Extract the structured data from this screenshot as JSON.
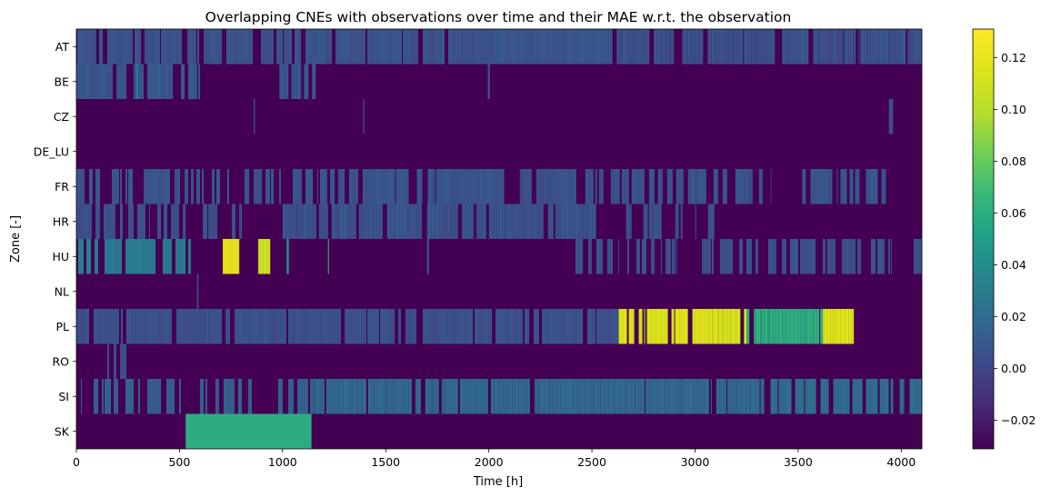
{
  "chart_data": {
    "type": "heatmap",
    "title": "Overlapping CNEs with observations over time and their MAE w.r.t. the observation",
    "xlabel": "Time [h]",
    "ylabel": "Zone [-]",
    "xlim": [
      0,
      4100
    ],
    "xticks": [
      0,
      500,
      1000,
      1500,
      2000,
      2500,
      3000,
      3500,
      4000
    ],
    "zones": [
      "AT",
      "BE",
      "CZ",
      "DE_LU",
      "FR",
      "HR",
      "HU",
      "NL",
      "PL",
      "RO",
      "SI",
      "SK"
    ],
    "colorbar": {
      "colormap": "viridis",
      "vmin": -0.031,
      "vmax": 0.131,
      "ticks": [
        -0.02,
        0.0,
        0.02,
        0.04,
        0.06,
        0.08,
        0.1,
        0.12
      ],
      "tick_labels": [
        "−0.02",
        "0.00",
        "0.02",
        "0.04",
        "0.06",
        "0.08",
        "0.10",
        "0.12"
      ]
    },
    "background_value": -0.031,
    "rows": [
      {
        "zone": "AT",
        "segments": [
          {
            "start": 0,
            "end": 2600,
            "value": 0.006,
            "density": 0.9
          },
          {
            "start": 2600,
            "end": 2620,
            "value": -0.031,
            "density": 1.0
          },
          {
            "start": 2620,
            "end": 4100,
            "value": 0.006,
            "density": 0.9
          }
        ]
      },
      {
        "zone": "BE",
        "segments": [
          {
            "start": 0,
            "end": 600,
            "value": 0.008,
            "density": 0.7
          },
          {
            "start": 290,
            "end": 300,
            "value": 0.03,
            "density": 1.0
          },
          {
            "start": 980,
            "end": 1160,
            "value": 0.008,
            "density": 0.5
          },
          {
            "start": 1995,
            "end": 2005,
            "value": 0.008,
            "density": 1.0
          }
        ]
      },
      {
        "zone": "CZ",
        "segments": [
          {
            "start": 860,
            "end": 866,
            "value": 0.005,
            "density": 1.0
          },
          {
            "start": 1390,
            "end": 1396,
            "value": 0.005,
            "density": 1.0
          },
          {
            "start": 3940,
            "end": 3960,
            "value": 0.005,
            "density": 1.0
          }
        ]
      },
      {
        "zone": "DE_LU",
        "segments": []
      },
      {
        "zone": "FR",
        "segments": [
          {
            "start": 0,
            "end": 1400,
            "value": 0.007,
            "density": 0.55
          },
          {
            "start": 1400,
            "end": 2080,
            "value": 0.008,
            "density": 0.85
          },
          {
            "start": 2080,
            "end": 3370,
            "value": 0.007,
            "density": 0.65
          },
          {
            "start": 3520,
            "end": 3960,
            "value": 0.007,
            "density": 0.5
          }
        ]
      },
      {
        "zone": "HR",
        "segments": [
          {
            "start": 0,
            "end": 530,
            "value": 0.005,
            "density": 0.7
          },
          {
            "start": 600,
            "end": 1000,
            "value": 0.005,
            "density": 0.25
          },
          {
            "start": 1000,
            "end": 2520,
            "value": 0.007,
            "density": 0.85
          },
          {
            "start": 2560,
            "end": 3100,
            "value": 0.005,
            "density": 0.55
          }
        ]
      },
      {
        "zone": "HU",
        "segments": [
          {
            "start": 0,
            "end": 560,
            "value": 0.028,
            "density": 0.75
          },
          {
            "start": 710,
            "end": 790,
            "value": 0.12,
            "density": 0.9
          },
          {
            "start": 860,
            "end": 940,
            "value": 0.11,
            "density": 0.6
          },
          {
            "start": 1020,
            "end": 1030,
            "value": 0.05,
            "density": 1.0
          },
          {
            "start": 1220,
            "end": 1310,
            "value": 0.07,
            "density": 0.5
          },
          {
            "start": 1700,
            "end": 1710,
            "value": 0.005,
            "density": 1.0
          },
          {
            "start": 2420,
            "end": 4100,
            "value": 0.006,
            "density": 0.55
          }
        ]
      },
      {
        "zone": "NL",
        "segments": [
          {
            "start": 585,
            "end": 592,
            "value": 0.005,
            "density": 1.0
          }
        ]
      },
      {
        "zone": "PL",
        "segments": [
          {
            "start": 0,
            "end": 2630,
            "value": 0.005,
            "density": 0.9
          },
          {
            "start": 2630,
            "end": 3070,
            "value": 0.115,
            "density": 0.75
          },
          {
            "start": 3070,
            "end": 3250,
            "value": 0.112,
            "density": 0.9
          },
          {
            "start": 3250,
            "end": 3620,
            "value": 0.06,
            "density": 0.95
          },
          {
            "start": 3620,
            "end": 3770,
            "value": 0.115,
            "density": 0.95
          }
        ]
      },
      {
        "zone": "RO",
        "segments": [
          {
            "start": 150,
            "end": 250,
            "value": 0.004,
            "density": 0.5
          }
        ]
      },
      {
        "zone": "SI",
        "segments": [
          {
            "start": 0,
            "end": 520,
            "value": 0.012,
            "density": 0.45
          },
          {
            "start": 520,
            "end": 1150,
            "value": 0.012,
            "density": 0.4
          },
          {
            "start": 1150,
            "end": 3300,
            "value": 0.018,
            "density": 0.9
          },
          {
            "start": 3300,
            "end": 4100,
            "value": 0.02,
            "density": 0.85
          }
        ]
      },
      {
        "zone": "SK",
        "segments": [
          {
            "start": 530,
            "end": 1140,
            "value": 0.06,
            "density": 1.0
          }
        ]
      }
    ]
  }
}
